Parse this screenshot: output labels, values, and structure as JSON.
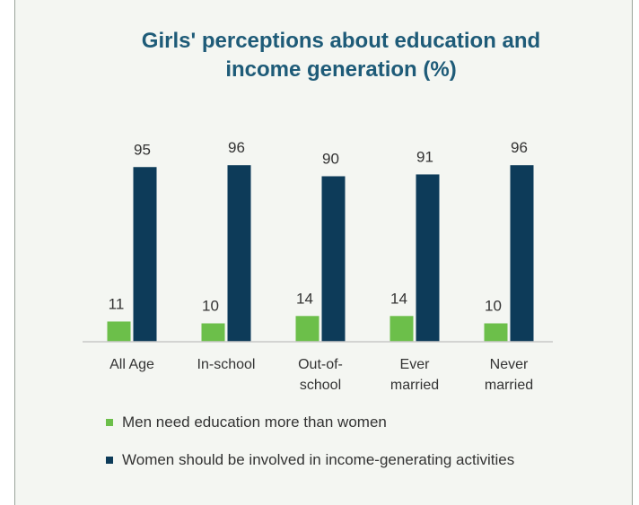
{
  "title_line1": "Girls' perceptions about education and",
  "title_line2": "income generation (%)",
  "colors": {
    "series1": "#6cbf4a",
    "series2": "#0d3b59"
  },
  "chart_data": {
    "type": "bar",
    "title": "Girls' perceptions about education and income generation (%)",
    "categories": [
      "All Age",
      "In-school",
      "Out-of-school",
      "Ever married",
      "Never married"
    ],
    "category_label_lines": [
      [
        "All Age"
      ],
      [
        "In-school"
      ],
      [
        "Out-of-",
        "school"
      ],
      [
        "Ever",
        "married"
      ],
      [
        "Never",
        "married"
      ]
    ],
    "series": [
      {
        "name": "Men need education more than women",
        "values": [
          11,
          10,
          14,
          14,
          10
        ]
      },
      {
        "name": "Women should be involved in income-generating activities",
        "values": [
          95,
          96,
          90,
          91,
          96
        ]
      }
    ],
    "ylim": [
      0,
      100
    ],
    "grid": false,
    "legend_position": "bottom"
  }
}
